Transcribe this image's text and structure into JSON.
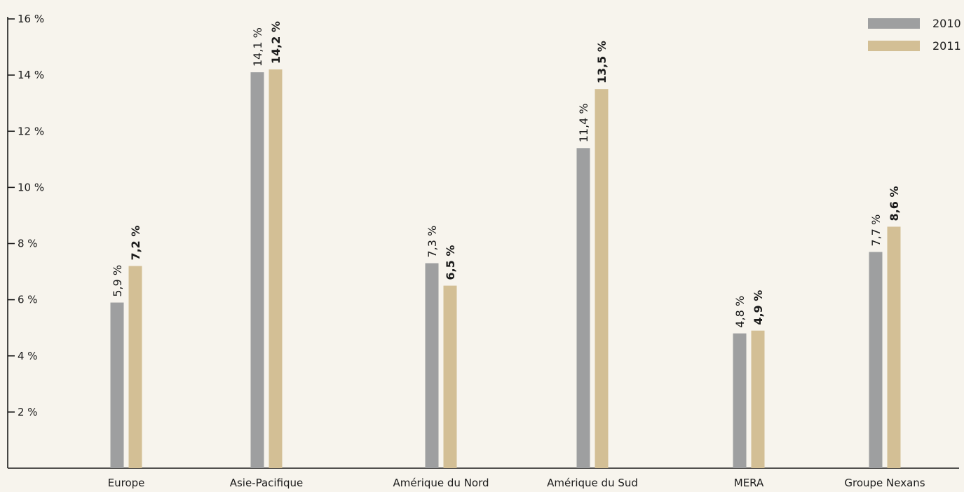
{
  "chart_data": {
    "type": "bar",
    "categories": [
      "Europe",
      "Asie-Pacifique",
      "Amérique du Nord",
      "Amérique du Sud",
      "MERA",
      "Groupe Nexans"
    ],
    "series": [
      {
        "name": "2010",
        "color": "#9e9fa0",
        "values": [
          5.9,
          14.1,
          7.3,
          11.4,
          4.8,
          7.7
        ],
        "labels": [
          "5,9 %",
          "14,1 %",
          "7,3 %",
          "11,4 %",
          "4,8 %",
          "7,7 %"
        ],
        "label_bold": false
      },
      {
        "name": "2011",
        "color": "#d3bf95",
        "values": [
          7.2,
          14.2,
          6.5,
          13.5,
          4.9,
          8.6
        ],
        "labels": [
          "7,2 %",
          "14,2 %",
          "6,5 %",
          "13,5 %",
          "4,9 %",
          "8,6 %"
        ],
        "label_bold": true
      }
    ],
    "y_ticks": [
      2,
      4,
      6,
      8,
      10,
      12,
      14,
      16
    ],
    "y_tick_labels": [
      "2 %",
      "4 %",
      "6 %",
      "8 %",
      "10 %",
      "12 %",
      "14 %",
      "16 %"
    ],
    "ylim": [
      0,
      16
    ],
    "title": "",
    "xlabel": "",
    "ylabel": "",
    "grid": false,
    "legend": "top-right"
  }
}
